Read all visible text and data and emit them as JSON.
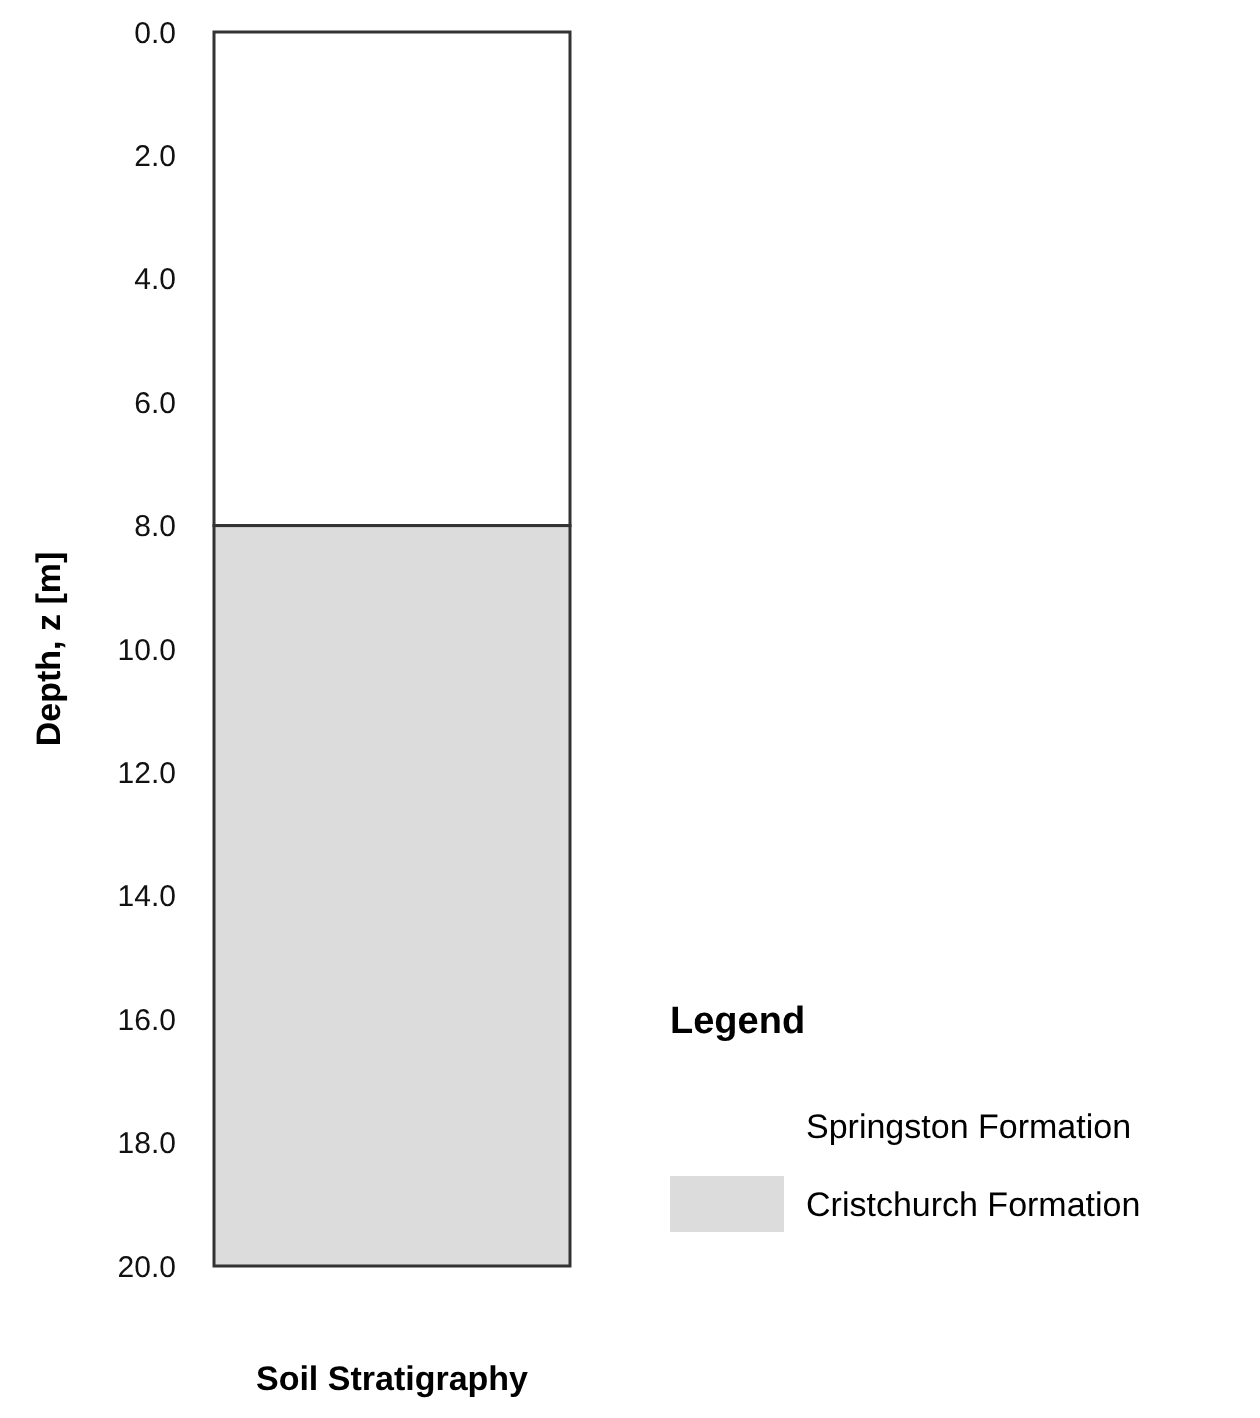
{
  "chart_data": {
    "type": "bar",
    "stacked": true,
    "xlabel": "Soil Stratigraphy",
    "ylabel": "Depth, z [m]",
    "legend_title": "Legend",
    "legend": "right",
    "categories": [
      null
    ],
    "ylim": [
      20,
      0
    ],
    "yticks": [
      {
        "value": 0,
        "label": "0.0"
      },
      {
        "value": 2,
        "label": "2.0"
      },
      {
        "value": 4,
        "label": "4.0"
      },
      {
        "value": 6,
        "label": "6.0"
      },
      {
        "value": 8,
        "label": "8.0"
      },
      {
        "value": 10,
        "label": "10.0"
      },
      {
        "value": 12,
        "label": "12.0"
      },
      {
        "value": 14,
        "label": "14.0"
      },
      {
        "value": 16,
        "label": "16.0"
      },
      {
        "value": 18,
        "label": "18.0"
      },
      {
        "value": 20,
        "label": "20.0"
      }
    ],
    "series": [
      {
        "name": "Springston Formation",
        "color": "#ffffff",
        "values": [
          8
        ]
      },
      {
        "name": "Cristchurch Formation",
        "color": "#dcdcdc",
        "values": [
          12
        ]
      }
    ]
  }
}
